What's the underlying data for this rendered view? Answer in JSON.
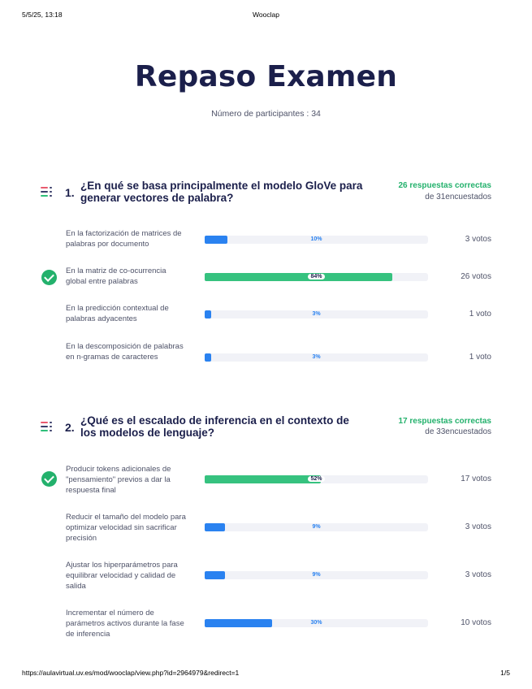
{
  "print_header": {
    "date": "5/5/25, 13:18",
    "app": "Wooclap"
  },
  "title": "Repaso Examen",
  "participants": "Número de participantes : 34",
  "questions": [
    {
      "number": "1.",
      "text": "¿En qué se basa principalmente el modelo GloVe para generar vectores de palabra?",
      "correct": "26 respuestas correctas",
      "surveyed": "de 31encuestados",
      "answers": [
        {
          "text": "En la factorización de matrices de palabras por documento",
          "percent": 10,
          "percent_label": "10%",
          "votes": "3 votos",
          "correct": false
        },
        {
          "text": "En la matriz de co-ocurrencia global entre palabras",
          "percent": 84,
          "percent_label": "84%",
          "votes": "26 votos",
          "correct": true
        },
        {
          "text": "En la predicción contextual de palabras adyacentes",
          "percent": 3,
          "percent_label": "3%",
          "votes": "1 voto",
          "correct": false
        },
        {
          "text": "En la descomposición de palabras en n-gramas de caracteres",
          "percent": 3,
          "percent_label": "3%",
          "votes": "1 voto",
          "correct": false
        }
      ]
    },
    {
      "number": "2.",
      "text": "¿Qué es el escalado de inferencia en el contexto de los modelos de lenguaje?",
      "correct": "17 respuestas correctas",
      "surveyed": "de 33encuestados",
      "answers": [
        {
          "text": "Producir tokens adicionales de \"pensamiento\" previos a dar la respuesta final",
          "percent": 52,
          "percent_label": "52%",
          "votes": "17 votos",
          "correct": true
        },
        {
          "text": "Reducir el tamaño del modelo para optimizar velocidad sin sacrificar precisión",
          "percent": 9,
          "percent_label": "9%",
          "votes": "3 votos",
          "correct": false
        },
        {
          "text": "Ajustar los hiperparámetros para equilibrar velocidad y calidad de salida",
          "percent": 9,
          "percent_label": "9%",
          "votes": "3 votos",
          "correct": false
        },
        {
          "text": "Incrementar el número de parámetros activos durante la fase de inferencia",
          "percent": 30,
          "percent_label": "30%",
          "votes": "10 votos",
          "correct": false
        }
      ]
    }
  ],
  "print_footer": {
    "url": "https://aulavirtual.uv.es/mod/wooclap/view.php?id=2964979&redirect=1",
    "page": "1/5"
  },
  "colors": {
    "correct_green": "#23b16c",
    "bar_blue": "#2a82f0",
    "title_navy": "#1b1f4b"
  }
}
